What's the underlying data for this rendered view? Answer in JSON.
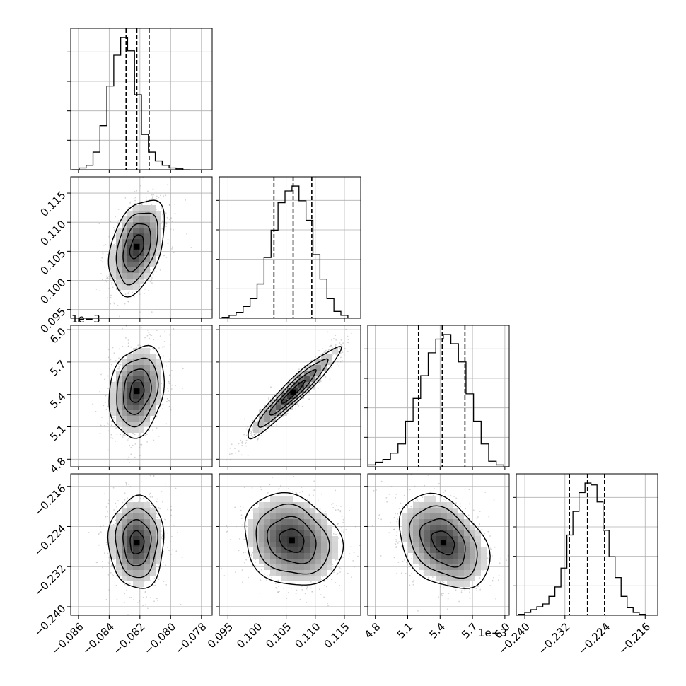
{
  "chart_data": {
    "type": "corner",
    "parameters": [
      {
        "index": 0,
        "range": [
          -0.0865,
          -0.0773
        ],
        "ticks": [
          -0.086,
          -0.084,
          -0.082,
          -0.08,
          -0.078
        ],
        "tick_labels": [
          "−0.086",
          "−0.084",
          "−0.082",
          "−0.080",
          "−0.078"
        ],
        "quantiles": [
          -0.0829,
          -0.0822,
          -0.0814
        ],
        "hist_bins": [
          -0.0864,
          -0.08595,
          -0.0855,
          -0.08505,
          -0.0846,
          -0.08415,
          -0.0837,
          -0.08325,
          -0.0828,
          -0.08235,
          -0.0819,
          -0.08145,
          -0.081,
          -0.08055,
          -0.0801,
          -0.07965,
          -0.0792
        ],
        "hist_counts": [
          0,
          2,
          5,
          20,
          50,
          95,
          130,
          150,
          135,
          85,
          40,
          20,
          10,
          5,
          2,
          1,
          0
        ]
      },
      {
        "index": 1,
        "range": [
          0.0935,
          0.1178
        ],
        "ticks": [
          0.095,
          0.1,
          0.105,
          0.11,
          0.115
        ],
        "tick_labels": [
          "0.095",
          "0.100",
          "0.105",
          "0.110",
          "0.115"
        ],
        "quantiles": [
          0.1029,
          0.1062,
          0.1094
        ],
        "hist_bins": [
          0.094,
          0.0952,
          0.0964,
          0.0976,
          0.0988,
          0.1,
          0.1012,
          0.1024,
          0.1036,
          0.1048,
          0.106,
          0.1072,
          0.1084,
          0.1096,
          0.1108,
          0.112,
          0.1132,
          0.1144,
          0.1156
        ],
        "hist_counts": [
          1,
          3,
          6,
          12,
          20,
          35,
          62,
          90,
          118,
          130,
          135,
          120,
          100,
          65,
          40,
          20,
          7,
          3,
          0
        ]
      },
      {
        "index": 2,
        "range": [
          4.73,
          6.04
        ],
        "ticks": [
          4.8,
          5.1,
          5.4,
          5.7,
          6.0
        ],
        "tick_labels": [
          "4.8",
          "5.1",
          "5.4",
          "5.7",
          "6.0"
        ],
        "offset_text": "1e−3",
        "quantiles": [
          5.2,
          5.42,
          5.63
        ],
        "hist_bins": [
          4.73,
          4.8,
          4.87,
          4.94,
          5.01,
          5.08,
          5.15,
          5.22,
          5.29,
          5.36,
          5.43,
          5.5,
          5.57,
          5.64,
          5.71,
          5.78,
          5.85,
          5.92,
          5.99
        ],
        "hist_counts": [
          2,
          5,
          8,
          15,
          25,
          50,
          75,
          100,
          125,
          140,
          145,
          135,
          115,
          80,
          50,
          25,
          6,
          2,
          0
        ]
      },
      {
        "index": 3,
        "range": [
          -0.2417,
          -0.2135
        ],
        "ticks": [
          -0.24,
          -0.232,
          -0.224,
          -0.216
        ],
        "tick_labels": [
          "−0.240",
          "−0.232",
          "−0.224",
          "−0.216"
        ],
        "quantiles": [
          -0.2311,
          -0.2275,
          -0.2241
        ],
        "hist_bins": [
          -0.2412,
          -0.24,
          -0.2388,
          -0.2376,
          -0.2364,
          -0.2352,
          -0.234,
          -0.2328,
          -0.2316,
          -0.2304,
          -0.2292,
          -0.228,
          -0.2268,
          -0.2256,
          -0.2244,
          -0.2232,
          -0.222,
          -0.2208,
          -0.2196,
          -0.2184,
          -0.2172,
          -0.216
        ],
        "hist_counts": [
          1,
          3,
          6,
          9,
          12,
          20,
          30,
          50,
          85,
          110,
          130,
          140,
          138,
          120,
          90,
          62,
          40,
          20,
          8,
          3,
          1,
          0
        ]
      }
    ],
    "pairs": [
      {
        "x": 0,
        "y": 1,
        "mean": [
          -0.0822,
          0.1058
        ],
        "std": [
          0.0009,
          0.0041
        ],
        "corr": 0.38
      },
      {
        "x": 0,
        "y": 2,
        "mean": [
          -0.0822,
          5.43
        ],
        "std": [
          0.0009,
          0.21
        ],
        "corr": 0.2
      },
      {
        "x": 1,
        "y": 2,
        "mean": [
          0.1062,
          5.42
        ],
        "std": [
          0.004,
          0.21
        ],
        "corr": 0.95
      },
      {
        "x": 0,
        "y": 3,
        "mean": [
          -0.0822,
          -0.2272
        ],
        "std": [
          0.0009,
          0.0046
        ],
        "corr": 0.0
      },
      {
        "x": 1,
        "y": 3,
        "mean": [
          0.106,
          -0.2268
        ],
        "std": [
          0.0042,
          0.0046
        ],
        "corr": -0.18
      },
      {
        "x": 2,
        "y": 3,
        "mean": [
          5.43,
          -0.2272
        ],
        "std": [
          0.21,
          0.0047
        ],
        "corr": -0.35
      }
    ],
    "contour_levels_sigma": [
      0.5,
      1.0,
      1.5,
      2.0
    ],
    "grid": true,
    "colors": {
      "hist": "#000000",
      "scatter": "#9e9e9e",
      "contour": "#000000",
      "fill": "#808080",
      "grid": "#b0b0b0"
    }
  }
}
